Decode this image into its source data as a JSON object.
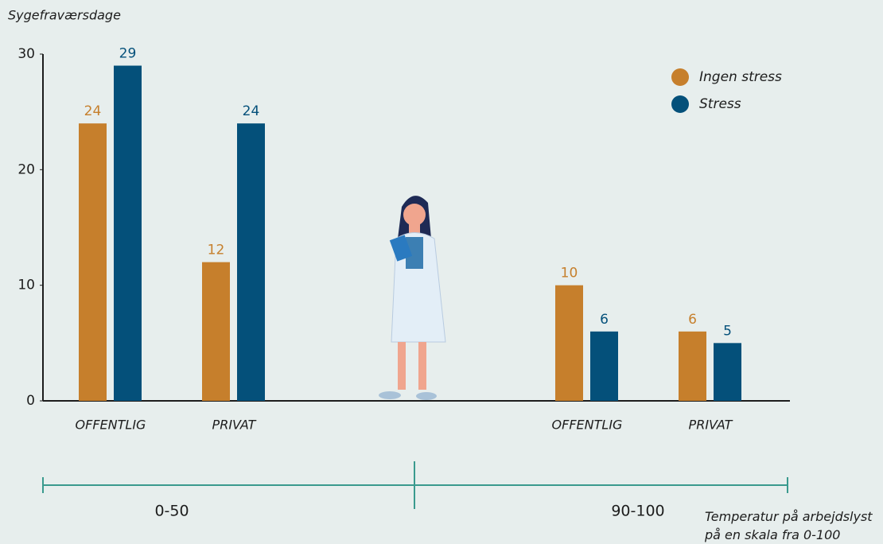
{
  "chart_data": {
    "type": "bar",
    "y_label": "Sygefraværsdage",
    "x_label": "Temperatur på arbejdslyst på en skala fra 0-100",
    "categories": [
      "OFFENTLIG",
      "PRIVAT",
      "OFFENTLIG",
      "PRIVAT"
    ],
    "groups": [
      "0-50",
      "90-100"
    ],
    "series": [
      {
        "name": "Ingen stress",
        "color": "#c67f2c",
        "values": [
          24,
          12,
          10,
          6
        ]
      },
      {
        "name": "Stress",
        "color": "#04507a",
        "values": [
          29,
          24,
          6,
          5
        ]
      }
    ],
    "ylim": [
      0,
      30
    ],
    "yticks": [
      0,
      10,
      20,
      30
    ],
    "legend": "top-right"
  }
}
